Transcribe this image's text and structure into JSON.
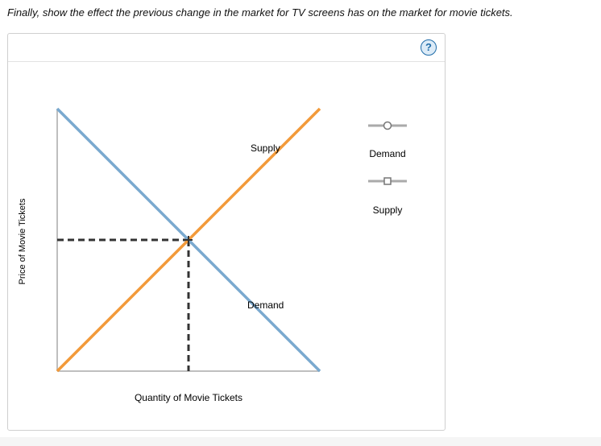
{
  "question": {
    "text": "Finally, show the effect the previous change in the market for TV screens has on the market for movie tickets."
  },
  "toolbar": {
    "help_label": "?"
  },
  "graph": {
    "x_axis_label": "Quantity of Movie Tickets",
    "y_axis_label": "Price of Movie Tickets",
    "supply_label": "Supply",
    "demand_label": "Demand"
  },
  "palette": {
    "demand_color": "#7aa9cf",
    "supply_color": "#f29a3a",
    "axis_color": "#aaaaaa",
    "equilibrium_line_color": "#333333",
    "tool_color": "#aaaaaa"
  },
  "tools": [
    {
      "label": "Demand",
      "icon": "circle-handle-icon"
    },
    {
      "label": "Supply",
      "icon": "square-handle-icon"
    }
  ]
}
